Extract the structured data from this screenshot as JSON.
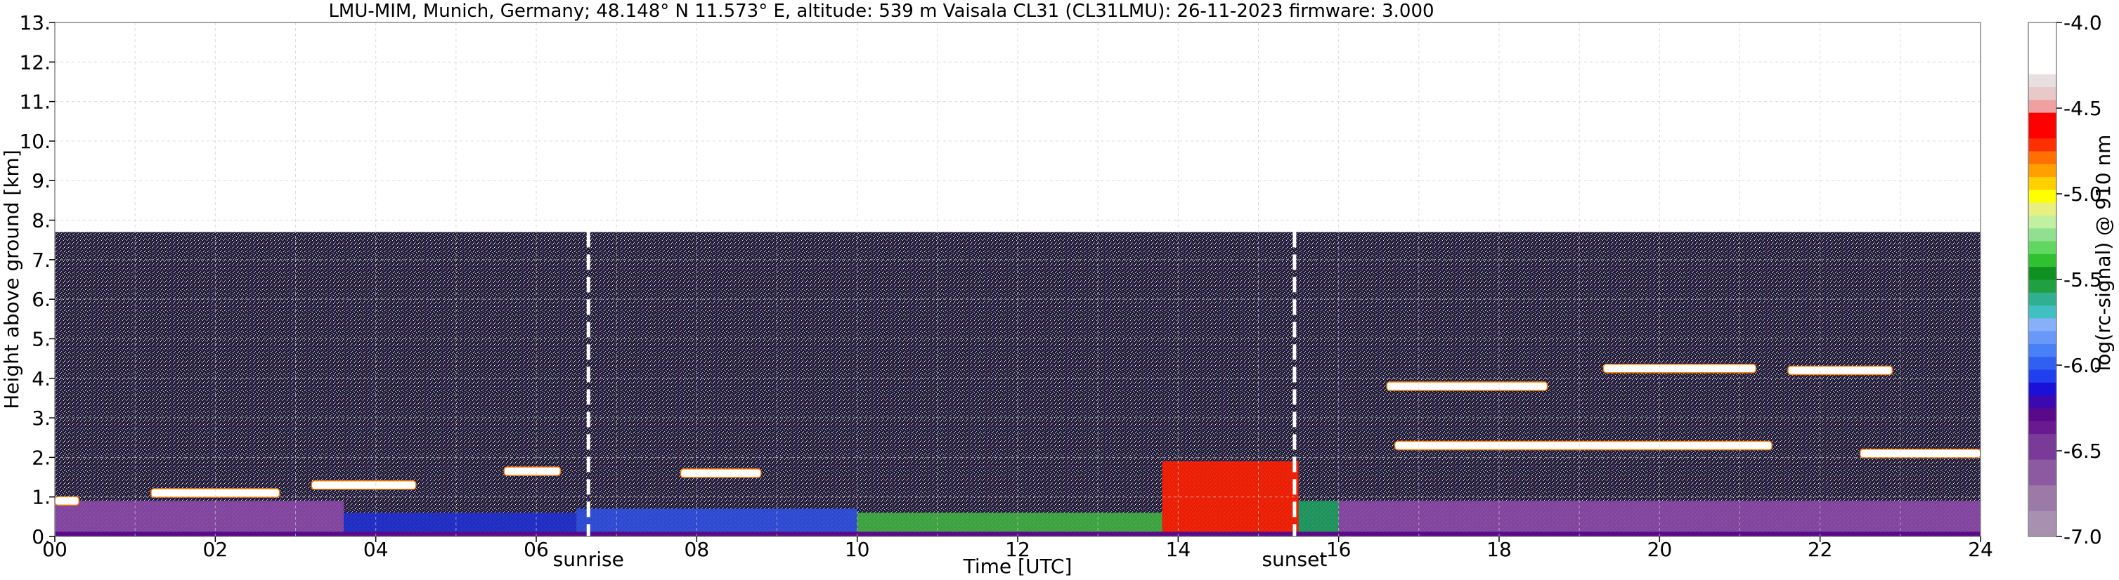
{
  "chart_data": {
    "type": "heatmap",
    "title": "LMU-MIM, Munich, Germany; 48.148° N 11.573° E, altitude: 539 m    Vaisala CL31 (CL31LMU): 26-11-2023    firmware: 3.000",
    "xlabel": "Time [UTC]",
    "ylabel": "Height above ground [km]",
    "xlim": [
      0,
      24
    ],
    "ylim": [
      0,
      13
    ],
    "x_ticks": [
      "00",
      "02",
      "04",
      "06",
      "08",
      "10",
      "12",
      "14",
      "16",
      "18",
      "20",
      "22",
      "24"
    ],
    "y_ticks": [
      "0.",
      "1.",
      "2.",
      "3.",
      "4.",
      "5.",
      "6.",
      "7.",
      "8.",
      "9.",
      "10.",
      "11.",
      "12.",
      "13."
    ],
    "grid": true,
    "colorbar": {
      "label": "log(rc-signal) @ 910 nm",
      "range": [
        -7.0,
        -4.0
      ],
      "ticks": [
        "-4.0",
        "-4.5",
        "-5.0",
        "-5.5",
        "-6.0",
        "-6.5",
        "-7.0"
      ],
      "colors": [
        "#a891b0",
        "#a891b0",
        "#9c7aa8",
        "#9c7aa8",
        "#8c5aa0",
        "#8c5aa0",
        "#7a3a98",
        "#7a3a98",
        "#6a1a90",
        "#5a0a88",
        "#3a0ab0",
        "#1a10d8",
        "#2040f0",
        "#3060f0",
        "#4880f8",
        "#6898f8",
        "#88b0f8",
        "#40c0c0",
        "#30b090",
        "#20a040",
        "#109020",
        "#30c030",
        "#60d860",
        "#90e090",
        "#c0f0a0",
        "#e8f080",
        "#ffff00",
        "#ffd000",
        "#ffa000",
        "#ff7000",
        "#ff3000",
        "#ff0000",
        "#ff0000",
        "#f0a0a0",
        "#e8c8c8",
        "#e8e0e0",
        "#ffffff",
        "#ffffff",
        "#ffffff",
        "#ffffff"
      ]
    },
    "annotations": [
      {
        "text": "sunrise",
        "x": 6.65
      },
      {
        "text": "sunset",
        "x": 15.45
      }
    ],
    "noise_top_km": 7.7,
    "cloud_layers": [
      {
        "x0": 0.0,
        "x1": 0.3,
        "y": 0.9,
        "color": "#ffffff"
      },
      {
        "x0": 1.2,
        "x1": 2.8,
        "y": 1.1,
        "color": "#ffffff"
      },
      {
        "x0": 3.2,
        "x1": 4.5,
        "y": 1.3,
        "color": "#ffffff"
      },
      {
        "x0": 5.6,
        "x1": 6.3,
        "y": 1.65,
        "color": "#ffffff"
      },
      {
        "x0": 7.8,
        "x1": 8.8,
        "y": 1.6,
        "color": "#ffffff"
      },
      {
        "x0": 16.6,
        "x1": 18.6,
        "y": 3.8,
        "color": "#ffffff"
      },
      {
        "x0": 19.3,
        "x1": 21.2,
        "y": 4.25,
        "color": "#ffffff"
      },
      {
        "x0": 21.6,
        "x1": 22.9,
        "y": 4.2,
        "color": "#ffffff"
      },
      {
        "x0": 16.7,
        "x1": 21.4,
        "y": 2.3,
        "color": "#ffffff"
      },
      {
        "x0": 22.5,
        "x1": 24.0,
        "y": 2.1,
        "color": "#ffffff"
      }
    ],
    "boundary_layer": [
      {
        "x0": 0.0,
        "x1": 3.6,
        "top": 0.9,
        "color": "#8c4aa8"
      },
      {
        "x0": 3.6,
        "x1": 6.5,
        "top": 0.6,
        "color": "#2030d0"
      },
      {
        "x0": 6.5,
        "x1": 10.0,
        "top": 0.7,
        "color": "#3050e0"
      },
      {
        "x0": 10.0,
        "x1": 13.8,
        "top": 0.6,
        "color": "#40b040"
      },
      {
        "x0": 13.8,
        "x1": 15.5,
        "top": 1.9,
        "color": "#ff2000"
      },
      {
        "x0": 15.5,
        "x1": 16.0,
        "top": 0.9,
        "color": "#20a060"
      },
      {
        "x0": 16.0,
        "x1": 24.0,
        "top": 0.9,
        "color": "#8c4aa8"
      }
    ]
  }
}
